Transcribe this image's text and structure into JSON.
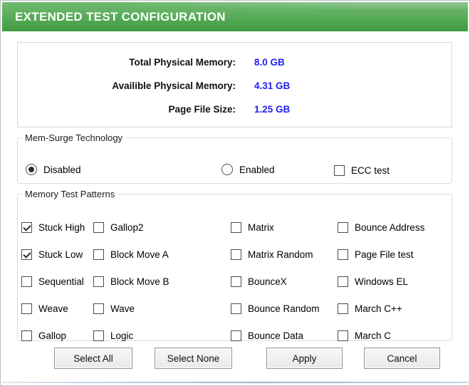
{
  "colors": {
    "accent-green": "#4ba54b",
    "green-light": "#72bb72",
    "green-dark": "#3f9b3f",
    "value-blue": "#1f1ff0"
  },
  "window": {
    "title": "EXTENDED TEST CONFIGURATION"
  },
  "memory_info": {
    "rows": [
      {
        "label": "Total Physical Memory:",
        "value": "8.0 GB"
      },
      {
        "label": "Availible Physical Memory:",
        "value": "4.31 GB"
      },
      {
        "label": "Page File Size:",
        "value": "1.25 GB"
      }
    ]
  },
  "mem_surge": {
    "title": "Mem-Surge Technology",
    "radios": [
      {
        "label": "Disabled",
        "checked": true
      },
      {
        "label": "Enabled",
        "checked": false
      }
    ],
    "ecc": {
      "label": "ECC test",
      "checked": false
    }
  },
  "patterns": {
    "title": "Memory Test Patterns",
    "columns": [
      [
        {
          "label": "Stuck High",
          "checked": true
        },
        {
          "label": "Stuck Low",
          "checked": true
        },
        {
          "label": "Sequential",
          "checked": false
        },
        {
          "label": "Weave",
          "checked": false
        },
        {
          "label": "Gallop",
          "checked": false
        }
      ],
      [
        {
          "label": "Gallop2",
          "checked": false
        },
        {
          "label": "Block Move A",
          "checked": false
        },
        {
          "label": "Block Move B",
          "checked": false
        },
        {
          "label": "Wave",
          "checked": false
        },
        {
          "label": "Logic",
          "checked": false
        }
      ],
      [
        {
          "label": "Matrix",
          "checked": false
        },
        {
          "label": "Matrix Random",
          "checked": false
        },
        {
          "label": "BounceX",
          "checked": false
        },
        {
          "label": "Bounce Random",
          "checked": false
        },
        {
          "label": "Bounce Data",
          "checked": false
        }
      ],
      [
        {
          "label": "Bounce Address",
          "checked": false
        },
        {
          "label": "Page File test",
          "checked": false
        },
        {
          "label": "Windows EL",
          "checked": false
        },
        {
          "label": "March C++",
          "checked": false
        },
        {
          "label": "March C",
          "checked": false
        }
      ]
    ]
  },
  "buttons": [
    {
      "label": "Select All"
    },
    {
      "label": "Select None"
    },
    {
      "label": "Apply"
    },
    {
      "label": "Cancel"
    }
  ]
}
